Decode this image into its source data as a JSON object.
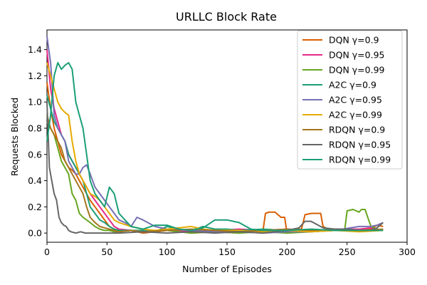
{
  "chart_data": {
    "type": "line",
    "title": "URLLC Block Rate",
    "xlabel": "Number of Episodes",
    "ylabel": "Requests Blocked",
    "xlim": [
      0,
      300
    ],
    "ylim": [
      -0.07,
      1.55
    ],
    "xticks": [
      0,
      50,
      100,
      150,
      200,
      250,
      300
    ],
    "yticks": [
      0.0,
      0.2,
      0.4,
      0.6,
      0.8,
      1.0,
      1.2,
      1.4
    ],
    "legend_position": "top-right",
    "grid": false,
    "series": [
      {
        "name": "DQN γ=0.9",
        "color": "#d95f02",
        "x": [
          0,
          3,
          6,
          9,
          12,
          15,
          18,
          21,
          24,
          27,
          30,
          33,
          36,
          40,
          44,
          48,
          52,
          56,
          60,
          70,
          80,
          90,
          100,
          120,
          140,
          160,
          180,
          182,
          185,
          190,
          195,
          198,
          200,
          205,
          210,
          212,
          215,
          220,
          225,
          228,
          230,
          232,
          235,
          240,
          250,
          260,
          270,
          275,
          280
        ],
        "y": [
          1.15,
          0.95,
          0.8,
          0.7,
          0.6,
          0.55,
          0.5,
          0.48,
          0.45,
          0.4,
          0.35,
          0.3,
          0.25,
          0.2,
          0.15,
          0.1,
          0.05,
          0.03,
          0.02,
          0.02,
          0.0,
          0.01,
          0.02,
          0.0,
          0.01,
          0.0,
          0.02,
          0.15,
          0.16,
          0.16,
          0.12,
          0.12,
          0.0,
          0.02,
          0.03,
          0.03,
          0.14,
          0.15,
          0.15,
          0.15,
          0.05,
          0.04,
          0.02,
          0.02,
          0.02,
          0.02,
          0.03,
          0.06,
          0.05
        ]
      },
      {
        "name": "DQN γ=0.95",
        "color": "#e7298a",
        "x": [
          0,
          3,
          6,
          9,
          12,
          15,
          18,
          21,
          24,
          27,
          30,
          33,
          36,
          40,
          44,
          48,
          52,
          56,
          60,
          70,
          80,
          100,
          120,
          140,
          160,
          180,
          200,
          220,
          240,
          260,
          270,
          275,
          280
        ],
        "y": [
          1.4,
          1.1,
          0.95,
          0.85,
          0.75,
          0.7,
          0.6,
          0.55,
          0.5,
          0.45,
          0.4,
          0.35,
          0.3,
          0.25,
          0.2,
          0.15,
          0.1,
          0.05,
          0.03,
          0.02,
          0.01,
          0.02,
          0.01,
          0.02,
          0.03,
          0.02,
          0.03,
          0.02,
          0.03,
          0.03,
          0.04,
          0.02,
          0.03
        ]
      },
      {
        "name": "DQN γ=0.99",
        "color": "#66a61e",
        "x": [
          0,
          3,
          6,
          9,
          12,
          15,
          18,
          21,
          24,
          27,
          30,
          33,
          36,
          40,
          44,
          48,
          52,
          56,
          60,
          70,
          80,
          100,
          120,
          140,
          160,
          180,
          200,
          220,
          240,
          248,
          250,
          255,
          260,
          262,
          265,
          268,
          270,
          275,
          280
        ],
        "y": [
          0.85,
          0.8,
          0.75,
          0.65,
          0.55,
          0.5,
          0.45,
          0.3,
          0.25,
          0.15,
          0.12,
          0.1,
          0.08,
          0.05,
          0.03,
          0.02,
          0.02,
          0.01,
          0.01,
          0.02,
          0.01,
          0.02,
          0.0,
          0.01,
          0.0,
          0.01,
          0.0,
          0.01,
          0.02,
          0.02,
          0.17,
          0.18,
          0.16,
          0.18,
          0.18,
          0.1,
          0.05,
          0.03,
          0.02
        ]
      },
      {
        "name": "A2C γ=0.9",
        "color": "#1b9e77",
        "x": [
          0,
          3,
          6,
          9,
          12,
          15,
          18,
          21,
          24,
          27,
          30,
          33,
          36,
          40,
          44,
          48,
          52,
          56,
          60,
          70,
          80,
          90,
          100,
          110,
          120,
          130,
          140,
          150,
          160,
          180,
          200,
          220,
          240,
          260,
          280
        ],
        "y": [
          1.05,
          0.95,
          0.85,
          0.8,
          0.75,
          0.7,
          0.6,
          0.55,
          0.5,
          0.45,
          0.4,
          0.3,
          0.2,
          0.15,
          0.1,
          0.08,
          0.05,
          0.03,
          0.02,
          0.02,
          0.02,
          0.01,
          0.05,
          0.03,
          0.02,
          0.05,
          0.03,
          0.03,
          0.02,
          0.03,
          0.02,
          0.02,
          0.03,
          0.02,
          0.02
        ]
      },
      {
        "name": "A2C γ=0.95",
        "color": "#7570b3",
        "x": [
          0,
          3,
          6,
          9,
          12,
          15,
          18,
          21,
          24,
          27,
          30,
          33,
          36,
          40,
          44,
          48,
          52,
          56,
          60,
          65,
          70,
          75,
          80,
          90,
          100,
          120,
          140,
          160,
          180,
          200,
          220,
          240,
          260,
          270,
          275,
          280
        ],
        "y": [
          1.5,
          1.3,
          0.9,
          0.8,
          0.75,
          0.7,
          0.55,
          0.5,
          0.45,
          0.45,
          0.5,
          0.52,
          0.45,
          0.35,
          0.3,
          0.25,
          0.2,
          0.15,
          0.1,
          0.08,
          0.05,
          0.12,
          0.1,
          0.05,
          0.03,
          0.02,
          0.01,
          0.01,
          0.0,
          0.01,
          0.01,
          0.02,
          0.05,
          0.05,
          0.06,
          0.08
        ]
      },
      {
        "name": "A2C γ=0.99",
        "color": "#e6ab02",
        "x": [
          0,
          3,
          6,
          9,
          12,
          15,
          18,
          21,
          24,
          27,
          30,
          33,
          36,
          40,
          44,
          48,
          52,
          56,
          60,
          70,
          80,
          90,
          100,
          110,
          120,
          130,
          140,
          160,
          180,
          200,
          220,
          240,
          260,
          280
        ],
        "y": [
          1.3,
          1.2,
          1.1,
          1.0,
          0.95,
          0.92,
          0.9,
          0.7,
          0.55,
          0.45,
          0.4,
          0.35,
          0.3,
          0.28,
          0.25,
          0.2,
          0.15,
          0.1,
          0.08,
          0.05,
          0.03,
          0.02,
          0.03,
          0.04,
          0.05,
          0.03,
          0.02,
          0.02,
          0.01,
          0.02,
          0.01,
          0.02,
          0.01,
          0.02
        ]
      },
      {
        "name": "RDQN γ=0.9",
        "color": "#a6761d",
        "x": [
          0,
          3,
          6,
          9,
          12,
          15,
          18,
          21,
          24,
          27,
          30,
          33,
          36,
          40,
          44,
          48,
          52,
          56,
          60,
          70,
          80,
          100,
          120,
          140,
          160,
          180,
          200,
          220,
          240,
          260,
          280
        ],
        "y": [
          0.9,
          0.8,
          0.75,
          0.7,
          0.65,
          0.55,
          0.5,
          0.45,
          0.4,
          0.35,
          0.3,
          0.2,
          0.12,
          0.08,
          0.05,
          0.04,
          0.03,
          0.02,
          0.01,
          0.02,
          0.01,
          0.02,
          0.03,
          0.02,
          0.01,
          0.02,
          0.03,
          0.02,
          0.03,
          0.02,
          0.03
        ]
      },
      {
        "name": "RDQN γ=0.95",
        "color": "#666666",
        "x": [
          0,
          2,
          4,
          6,
          8,
          10,
          12,
          14,
          16,
          18,
          20,
          24,
          28,
          32,
          36,
          40,
          50,
          60,
          80,
          100,
          120,
          140,
          160,
          180,
          200,
          210,
          215,
          220,
          230,
          240,
          250,
          260,
          270,
          275,
          280
        ],
        "y": [
          1.0,
          0.5,
          0.4,
          0.3,
          0.25,
          0.12,
          0.08,
          0.06,
          0.05,
          0.02,
          0.01,
          0.0,
          0.01,
          0.0,
          0.0,
          0.0,
          0.0,
          0.0,
          0.01,
          0.0,
          0.01,
          0.0,
          0.01,
          0.0,
          0.02,
          0.04,
          0.09,
          0.09,
          0.04,
          0.03,
          0.03,
          0.02,
          0.02,
          0.04,
          0.08
        ]
      },
      {
        "name": "RDQN γ=0.99",
        "color": "#1b9e77",
        "x": [
          0,
          3,
          6,
          9,
          12,
          15,
          18,
          21,
          24,
          27,
          30,
          33,
          36,
          40,
          44,
          48,
          52,
          56,
          60,
          70,
          80,
          90,
          100,
          110,
          120,
          130,
          140,
          150,
          160,
          170,
          180,
          200,
          220,
          240,
          260,
          280
        ],
        "y": [
          0.7,
          0.9,
          1.2,
          1.3,
          1.25,
          1.28,
          1.3,
          1.25,
          1.0,
          0.9,
          0.8,
          0.6,
          0.4,
          0.3,
          0.25,
          0.2,
          0.35,
          0.3,
          0.15,
          0.05,
          0.03,
          0.06,
          0.06,
          0.03,
          0.02,
          0.04,
          0.1,
          0.1,
          0.08,
          0.03,
          0.02,
          0.02,
          0.03,
          0.02,
          0.02,
          0.02
        ]
      }
    ]
  }
}
